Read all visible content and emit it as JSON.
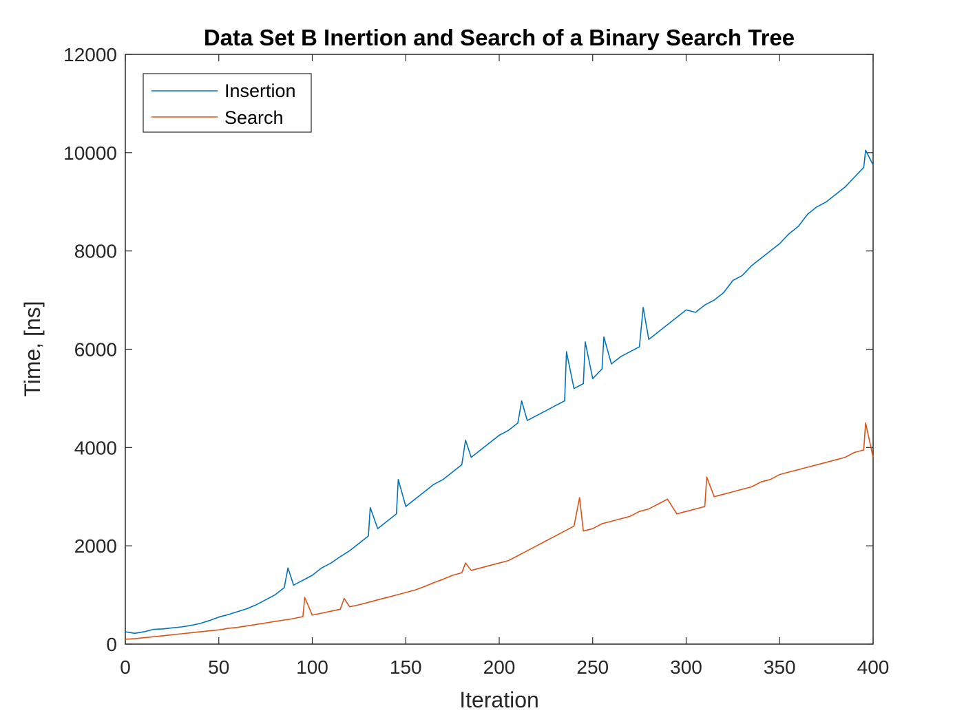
{
  "chart_data": {
    "type": "line",
    "title": "Data Set B Inertion and Search of a Binary Search Tree",
    "xlabel": "Iteration",
    "ylabel": "Time, [ns]",
    "xlim": [
      0,
      400
    ],
    "ylim": [
      0,
      12000
    ],
    "xticks": [
      "0",
      "50",
      "100",
      "150",
      "200",
      "250",
      "300",
      "350",
      "400"
    ],
    "yticks": [
      "0",
      "2000",
      "4000",
      "6000",
      "8000",
      "10000",
      "12000"
    ],
    "grid": false,
    "legend_position": "top-left",
    "series": [
      {
        "name": "Insertion",
        "color": "#0072BD",
        "x": [
          0,
          5,
          10,
          15,
          20,
          25,
          30,
          35,
          40,
          45,
          50,
          55,
          60,
          65,
          70,
          75,
          80,
          85,
          87,
          90,
          95,
          100,
          105,
          110,
          115,
          120,
          125,
          130,
          131,
          135,
          140,
          145,
          146,
          150,
          155,
          160,
          165,
          170,
          175,
          180,
          182,
          185,
          190,
          195,
          200,
          205,
          210,
          212,
          215,
          220,
          225,
          230,
          235,
          236,
          240,
          245,
          246,
          250,
          255,
          256,
          260,
          265,
          270,
          275,
          277,
          280,
          285,
          290,
          295,
          300,
          305,
          310,
          315,
          320,
          325,
          330,
          335,
          340,
          345,
          350,
          355,
          360,
          365,
          370,
          375,
          380,
          385,
          390,
          395,
          396,
          400
        ],
        "y": [
          250,
          220,
          250,
          300,
          310,
          330,
          350,
          380,
          420,
          480,
          550,
          600,
          660,
          720,
          800,
          900,
          1000,
          1150,
          1550,
          1200,
          1300,
          1400,
          1550,
          1650,
          1780,
          1900,
          2050,
          2200,
          2780,
          2350,
          2500,
          2650,
          3350,
          2800,
          2950,
          3100,
          3250,
          3350,
          3500,
          3650,
          4150,
          3800,
          3950,
          4100,
          4250,
          4350,
          4500,
          4950,
          4550,
          4650,
          4750,
          4850,
          4950,
          5950,
          5200,
          5300,
          6150,
          5400,
          5600,
          6250,
          5700,
          5850,
          5950,
          6050,
          6850,
          6200,
          6350,
          6500,
          6650,
          6800,
          6750,
          6900,
          7000,
          7150,
          7400,
          7500,
          7700,
          7850,
          8000,
          8150,
          8350,
          8500,
          8750,
          8900,
          9000,
          9150,
          9300,
          9500,
          9700,
          10050,
          9750
        ]
      },
      {
        "name": "Search",
        "color": "#D95319",
        "x": [
          0,
          5,
          10,
          15,
          20,
          25,
          30,
          35,
          40,
          45,
          50,
          55,
          60,
          65,
          70,
          75,
          80,
          85,
          90,
          95,
          96,
          100,
          105,
          110,
          115,
          117,
          120,
          125,
          130,
          135,
          140,
          145,
          150,
          155,
          160,
          165,
          170,
          175,
          180,
          182,
          185,
          190,
          195,
          200,
          205,
          210,
          215,
          220,
          225,
          230,
          235,
          240,
          243,
          245,
          250,
          255,
          260,
          265,
          270,
          275,
          280,
          285,
          290,
          295,
          300,
          305,
          310,
          311,
          315,
          320,
          325,
          330,
          335,
          340,
          345,
          350,
          355,
          360,
          365,
          370,
          375,
          380,
          385,
          390,
          395,
          396,
          400
        ],
        "y": [
          100,
          110,
          130,
          150,
          170,
          190,
          210,
          230,
          250,
          270,
          290,
          320,
          340,
          370,
          400,
          430,
          460,
          490,
          520,
          560,
          950,
          590,
          630,
          670,
          710,
          930,
          760,
          800,
          850,
          900,
          950,
          1000,
          1050,
          1100,
          1170,
          1250,
          1320,
          1400,
          1450,
          1650,
          1500,
          1550,
          1600,
          1650,
          1700,
          1800,
          1900,
          2000,
          2100,
          2200,
          2300,
          2400,
          2980,
          2300,
          2350,
          2450,
          2500,
          2550,
          2600,
          2700,
          2750,
          2850,
          2950,
          2650,
          2700,
          2750,
          2800,
          3400,
          3000,
          3050,
          3100,
          3150,
          3200,
          3300,
          3350,
          3450,
          3500,
          3550,
          3600,
          3650,
          3700,
          3750,
          3800,
          3900,
          3950,
          4500,
          3800
        ]
      }
    ]
  }
}
